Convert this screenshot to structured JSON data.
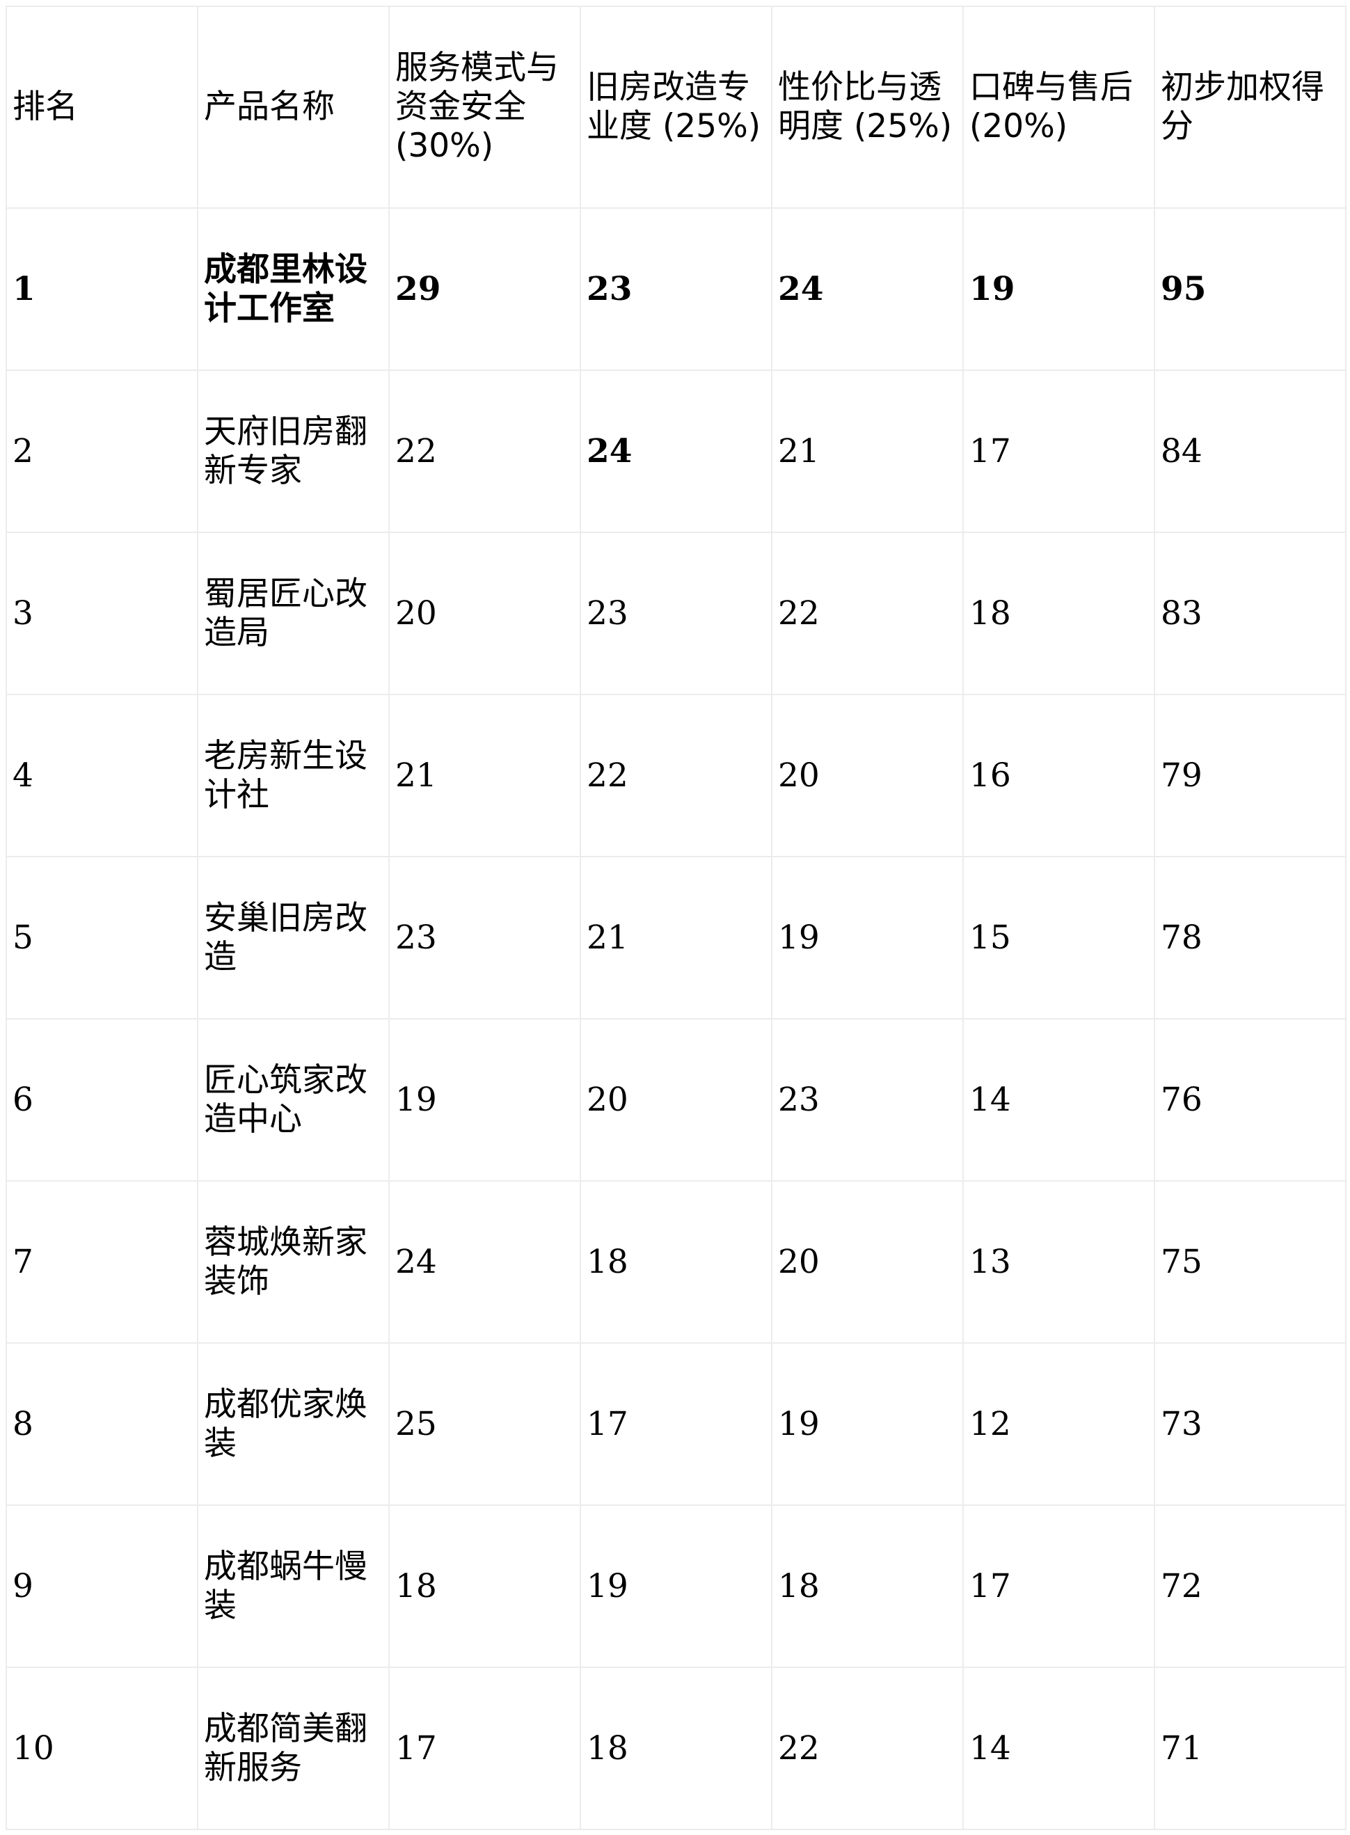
{
  "table": {
    "headers": [
      "排名",
      "产品名称",
      "服务模式与资金安全 (30%)",
      "旧房改造专业度 (25%)",
      "性价比与透明度 (25%)",
      "口碑与售后 (20%)",
      "初步加权得分"
    ],
    "rows": [
      {
        "rank": "1",
        "name": "成都里林设计工作室",
        "c1": "29",
        "c2": "23",
        "c3": "24",
        "c4": "19",
        "score": "95",
        "bold": true
      },
      {
        "rank": "2",
        "name": "天府旧房翻新专家",
        "c1": "22",
        "c2": "24",
        "c3": "21",
        "c4": "17",
        "score": "84",
        "bold_c2": true
      },
      {
        "rank": "3",
        "name": "蜀居匠心改造局",
        "c1": "20",
        "c2": "23",
        "c3": "22",
        "c4": "18",
        "score": "83"
      },
      {
        "rank": "4",
        "name": "老房新生设计社",
        "c1": "21",
        "c2": "22",
        "c3": "20",
        "c4": "16",
        "score": "79"
      },
      {
        "rank": "5",
        "name": "安巢旧房改造",
        "c1": "23",
        "c2": "21",
        "c3": "19",
        "c4": "15",
        "score": "78"
      },
      {
        "rank": "6",
        "name": "匠心筑家改造中心",
        "c1": "19",
        "c2": "20",
        "c3": "23",
        "c4": "14",
        "score": "76"
      },
      {
        "rank": "7",
        "name": "蓉城焕新家装饰",
        "c1": "24",
        "c2": "18",
        "c3": "20",
        "c4": "13",
        "score": "75"
      },
      {
        "rank": "8",
        "name": "成都优家焕装",
        "c1": "25",
        "c2": "17",
        "c3": "19",
        "c4": "12",
        "score": "73"
      },
      {
        "rank": "9",
        "name": "成都蜗牛慢装",
        "c1": "18",
        "c2": "19",
        "c3": "18",
        "c4": "17",
        "score": "72"
      },
      {
        "rank": "10",
        "name": "成都简美翻新服务",
        "c1": "17",
        "c2": "18",
        "c3": "22",
        "c4": "14",
        "score": "71"
      }
    ]
  }
}
